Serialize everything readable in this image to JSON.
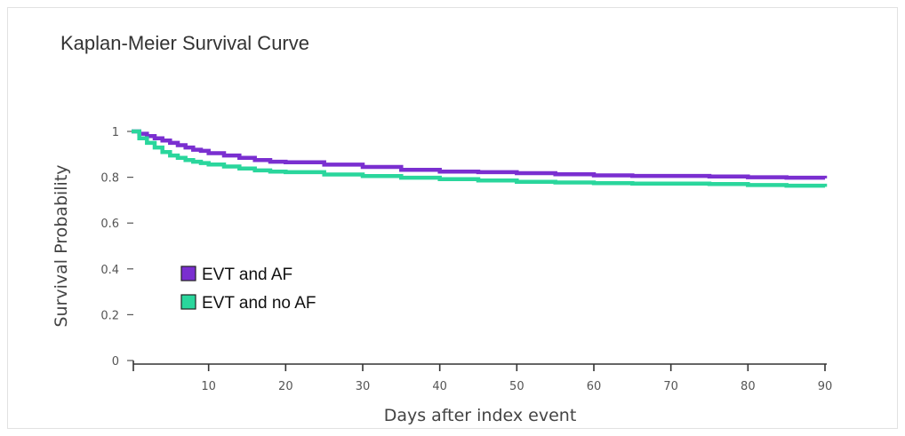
{
  "chart_data": {
    "type": "line",
    "title": "Kaplan-Meier Survival Curve",
    "xlabel": "Days after index event",
    "ylabel": "Survival Probability",
    "xlim": [
      0,
      90
    ],
    "ylim": [
      0,
      1
    ],
    "xticks": [
      10,
      20,
      30,
      40,
      50,
      60,
      70,
      80,
      90
    ],
    "yticks": [
      0,
      0.2,
      0.4,
      0.6,
      0.8,
      1
    ],
    "ytick_labels": [
      "0",
      "0.2",
      "0.4",
      "0.6",
      "0.8",
      "1"
    ],
    "grid": false,
    "legend_position": "bottom-left",
    "series": [
      {
        "name": "EVT and AF",
        "color": "#7a2fd0",
        "x": [
          0,
          1,
          2,
          3,
          4,
          5,
          6,
          7,
          8,
          9,
          10,
          12,
          14,
          16,
          18,
          20,
          25,
          30,
          35,
          40,
          45,
          50,
          55,
          60,
          65,
          70,
          75,
          80,
          85,
          90
        ],
        "y": [
          1.0,
          0.99,
          0.98,
          0.97,
          0.96,
          0.95,
          0.94,
          0.93,
          0.92,
          0.915,
          0.905,
          0.895,
          0.885,
          0.875,
          0.868,
          0.865,
          0.855,
          0.845,
          0.832,
          0.825,
          0.822,
          0.818,
          0.813,
          0.808,
          0.806,
          0.806,
          0.803,
          0.8,
          0.798,
          0.795
        ]
      },
      {
        "name": "EVT and no AF",
        "color": "#2ad69c",
        "x": [
          0,
          1,
          2,
          3,
          4,
          5,
          6,
          7,
          8,
          9,
          10,
          12,
          14,
          16,
          18,
          20,
          25,
          30,
          35,
          40,
          45,
          50,
          55,
          60,
          65,
          70,
          75,
          80,
          85,
          90
        ],
        "y": [
          1.0,
          0.97,
          0.95,
          0.93,
          0.91,
          0.895,
          0.885,
          0.875,
          0.868,
          0.862,
          0.856,
          0.847,
          0.838,
          0.83,
          0.825,
          0.822,
          0.812,
          0.805,
          0.798,
          0.792,
          0.786,
          0.78,
          0.777,
          0.774,
          0.772,
          0.772,
          0.77,
          0.766,
          0.763,
          0.758
        ]
      }
    ]
  }
}
